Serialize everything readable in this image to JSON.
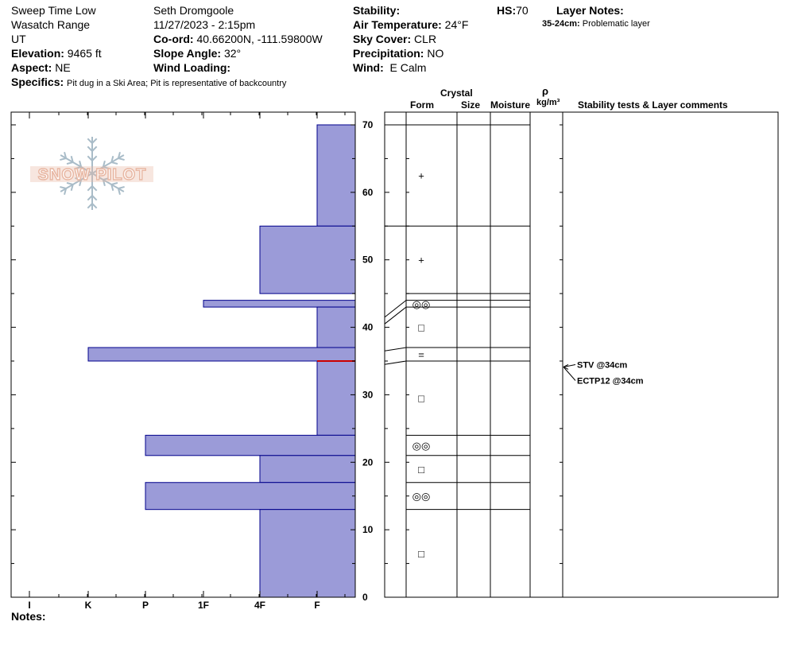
{
  "header": {
    "pit_name": "Sweep Time Low",
    "range": "Wasatch Range",
    "state": "UT",
    "elevation_label": "Elevation:",
    "elevation_value": "9465 ft",
    "aspect_label": "Aspect:",
    "aspect_value": "NE",
    "specifics_label": "Specifics:",
    "specifics_value": "Pit dug in a Ski Area; Pit is representative of backcountry",
    "observer": "Seth Dromgoole",
    "datetime": "11/27/2023 - 2:15pm",
    "coord_label": "Co-ord:",
    "coord_value": "40.66200N, -111.59800W",
    "slope_label": "Slope Angle:",
    "slope_value": "32°",
    "wind_loading_label": "Wind Loading:",
    "stability_label": "Stability:",
    "air_temp_label": "Air Temperature:",
    "air_temp_value": "24°F",
    "sky_label": "Sky Cover:",
    "sky_value": "CLR",
    "precip_label": "Precipitation:",
    "precip_value": "NO",
    "wind_label": "Wind:",
    "wind_value": "E Calm",
    "hs_label": "HS:",
    "hs_value": "70",
    "layer_notes_label": "Layer Notes:",
    "layer_note_range": "35-24cm:",
    "layer_note_text": "Problematic layer"
  },
  "footer": {
    "notes_label": "Notes:"
  },
  "logo": {
    "text": "SNOW PILOT"
  },
  "colors": {
    "bar_fill": "#9b9bd8",
    "bar_stroke": "#00008b",
    "weak_line": "#cc0000",
    "logo_text": "#e8b7a3",
    "logo_flake": "#a9bcc8"
  },
  "table_headers": {
    "crystal": "Crystal",
    "form": "Form",
    "size": "Size",
    "moisture": "Moisture",
    "rho": "ρ",
    "density_unit": "kg/m³",
    "stability_comments": "Stability tests & Layer comments"
  },
  "chart_data": {
    "type": "bar",
    "orientation": "horizontal",
    "description_axis": "hand hardness vs depth",
    "x_categories": [
      "I",
      "K",
      "P",
      "1F",
      "4F",
      "F"
    ],
    "y_axis": {
      "min": 0,
      "max": 70,
      "ticks": [
        0,
        10,
        20,
        30,
        40,
        50,
        60,
        70
      ]
    },
    "layers": [
      {
        "bottom": 55,
        "top": 70,
        "hardness": "F",
        "form": "+"
      },
      {
        "bottom": 45,
        "top": 55,
        "hardness": "4F",
        "form": "+"
      },
      {
        "bottom": 43,
        "top": 44,
        "hardness": "1F",
        "form": "◎◎"
      },
      {
        "bottom": 37,
        "top": 43,
        "hardness": "F",
        "form": "□"
      },
      {
        "bottom": 35,
        "top": 37,
        "hardness": "K",
        "form": "="
      },
      {
        "bottom": 24,
        "top": 35,
        "hardness": "F",
        "form": "□"
      },
      {
        "bottom": 21,
        "top": 24,
        "hardness": "P",
        "form": "◎◎"
      },
      {
        "bottom": 17,
        "top": 21,
        "hardness": "4F",
        "form": "□"
      },
      {
        "bottom": 13,
        "top": 17,
        "hardness": "P",
        "form": "◎◎"
      },
      {
        "bottom": 0,
        "top": 13,
        "hardness": "4F",
        "form": "□"
      }
    ],
    "weak_layer_depth": 35,
    "stability_tests": [
      {
        "label": "STV @34cm",
        "depth": 34
      },
      {
        "label": "ECTP12 @34cm",
        "depth": 34
      }
    ]
  }
}
